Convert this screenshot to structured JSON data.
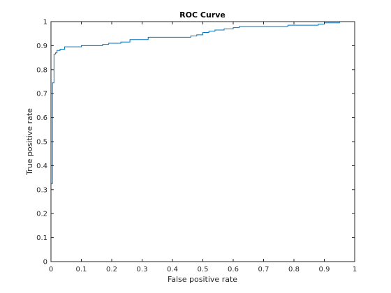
{
  "chart_data": {
    "type": "line",
    "title": "ROC Curve",
    "xlabel": "False positive rate",
    "ylabel": "True positive rate",
    "xlim": [
      0,
      1
    ],
    "ylim": [
      0,
      1
    ],
    "x_ticks": [
      0,
      0.1,
      0.2,
      0.3,
      0.4,
      0.5,
      0.6,
      0.7,
      0.8,
      0.9,
      1
    ],
    "y_ticks": [
      0,
      0.1,
      0.2,
      0.3,
      0.4,
      0.5,
      0.6,
      0.7,
      0.8,
      0.9,
      1
    ],
    "x_tick_labels": [
      "0",
      "0.1",
      "0.2",
      "0.3",
      "0.4",
      "0.5",
      "0.6",
      "0.7",
      "0.8",
      "0.9",
      "1"
    ],
    "y_tick_labels": [
      "0",
      "0.1",
      "0.2",
      "0.3",
      "0.4",
      "0.5",
      "0.6",
      "0.7",
      "0.8",
      "0.9",
      "1"
    ],
    "grid": false,
    "line_color": "#0072BD",
    "series": [
      {
        "x": [
          0,
          0,
          0.005,
          0.005,
          0.01,
          0.01,
          0.015,
          0.015,
          0.02,
          0.02,
          0.03,
          0.03,
          0.045,
          0.045,
          0.1,
          0.1,
          0.17,
          0.17,
          0.19,
          0.19,
          0.23,
          0.23,
          0.26,
          0.26,
          0.32,
          0.32,
          0.46,
          0.46,
          0.48,
          0.48,
          0.5,
          0.5,
          0.52,
          0.52,
          0.54,
          0.54,
          0.57,
          0.57,
          0.6,
          0.6,
          0.62,
          0.62,
          0.78,
          0.78,
          0.88,
          0.88,
          0.9,
          0.9,
          0.95,
          0.95,
          1
        ],
        "y": [
          0,
          0.325,
          0.325,
          0.745,
          0.745,
          0.865,
          0.865,
          0.87,
          0.87,
          0.88,
          0.88,
          0.885,
          0.885,
          0.895,
          0.895,
          0.9,
          0.9,
          0.905,
          0.905,
          0.91,
          0.91,
          0.915,
          0.915,
          0.925,
          0.925,
          0.935,
          0.935,
          0.94,
          0.94,
          0.945,
          0.945,
          0.955,
          0.955,
          0.96,
          0.96,
          0.965,
          0.965,
          0.97,
          0.97,
          0.975,
          0.975,
          0.98,
          0.98,
          0.985,
          0.985,
          0.99,
          0.99,
          0.995,
          0.995,
          1,
          1
        ]
      }
    ]
  }
}
